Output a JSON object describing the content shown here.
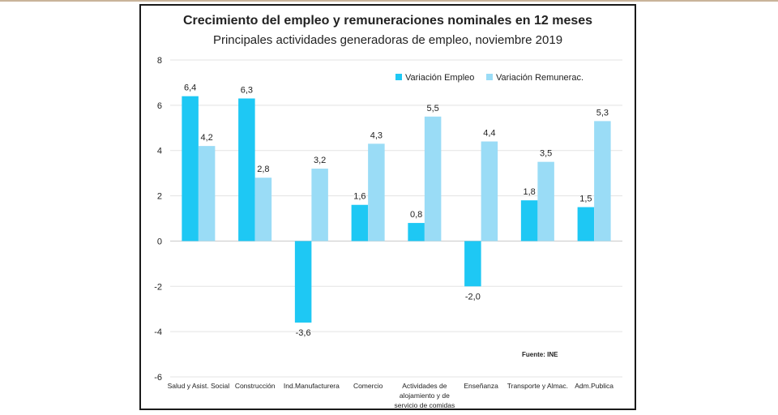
{
  "chart_data": {
    "type": "bar",
    "title": "Crecimiento del empleo y remuneraciones nominales en 12 meses",
    "subtitle": "Principales actividades generadoras de empleo, noviembre 2019",
    "categories": [
      [
        "Salud y Asist. Social"
      ],
      [
        "Construcción"
      ],
      [
        "Ind.Manufacturera"
      ],
      [
        "Comercio"
      ],
      [
        "Actividades de",
        "alojamiento y de",
        "servicio de comidas"
      ],
      [
        "Enseñanza"
      ],
      [
        "Transporte y Almac."
      ],
      [
        "Adm.Publica"
      ]
    ],
    "series": [
      {
        "name": "Variación Empleo",
        "color": "#1ec8f4",
        "values": [
          6.4,
          6.3,
          -3.6,
          1.6,
          0.8,
          -2.0,
          1.8,
          1.5
        ],
        "labels": [
          "6,4",
          "6,3",
          "-3,6",
          "1,6",
          "0,8",
          "-2,0",
          "1,8",
          "1,5"
        ]
      },
      {
        "name": "Variación Remunerac.",
        "color": "#9adcf6",
        "values": [
          4.2,
          2.8,
          3.2,
          4.3,
          5.5,
          4.4,
          3.5,
          5.3
        ],
        "labels": [
          "4,2",
          "2,8",
          "3,2",
          "4,3",
          "5,5",
          "4,4",
          "3,5",
          "5,3"
        ]
      }
    ],
    "ylim": [
      -6,
      8
    ],
    "yticks": [
      8,
      6,
      4,
      2,
      0,
      -2,
      -4,
      -6
    ],
    "grid": true,
    "legend_position": "top-right",
    "source_note": "Fuente: INE"
  }
}
